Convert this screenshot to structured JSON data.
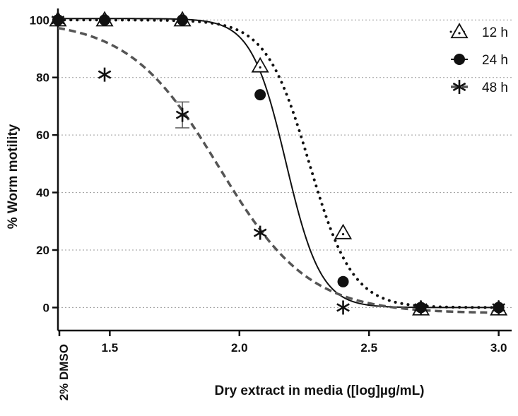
{
  "chart_data": {
    "type": "scatter",
    "title": "",
    "xlabel": "Dry extract in media ([log]µg/mL)",
    "ylabel": "% Worm motility",
    "xlim": [
      1.3,
      3.05
    ],
    "ylim": [
      -8,
      104
    ],
    "x_scale": "log10",
    "x_ticks": [
      1.5,
      2.0,
      2.5,
      3.0
    ],
    "x_tick_labels": [
      "1.5",
      "2.0",
      "2.5",
      "3.0"
    ],
    "x_control_label": "2% DMSO",
    "y_ticks": [
      0,
      20,
      40,
      60,
      80,
      100
    ],
    "y_tick_labels": [
      "0",
      "20",
      "40",
      "60",
      "80",
      "100"
    ],
    "grid": "horizontal dotted",
    "legend_position": "top-right",
    "series": [
      {
        "name": "12 h",
        "marker": "triangle-open",
        "line_style": "dotted",
        "color": "#111111",
        "points": [
          {
            "x": 1.3,
            "y": 100
          },
          {
            "x": 1.48,
            "y": 100
          },
          {
            "x": 1.78,
            "y": 100
          },
          {
            "x": 2.08,
            "y": 84
          },
          {
            "x": 2.4,
            "y": 26
          },
          {
            "x": 2.7,
            "y": -0.5
          },
          {
            "x": 3.0,
            "y": -0.5
          }
        ],
        "fit": {
          "top": 100,
          "bottom": 0,
          "log_ec50": 2.27,
          "hill": 5.2
        }
      },
      {
        "name": "24 h",
        "marker": "circle-filled",
        "line_style": "solid",
        "color": "#111111",
        "points": [
          {
            "x": 1.3,
            "y": 100
          },
          {
            "x": 1.48,
            "y": 100
          },
          {
            "x": 1.78,
            "y": 100
          },
          {
            "x": 2.08,
            "y": 74
          },
          {
            "x": 2.4,
            "y": 9
          },
          {
            "x": 2.7,
            "y": 0
          },
          {
            "x": 3.0,
            "y": 0
          }
        ],
        "fit": {
          "top": 100.5,
          "bottom": 0,
          "log_ec50": 2.18,
          "hill": 6.5
        }
      },
      {
        "name": "48 h",
        "marker": "asterisk",
        "line_style": "dashed",
        "color": "#555555",
        "points": [
          {
            "x": 1.3,
            "y": 100
          },
          {
            "x": 1.48,
            "y": 81
          },
          {
            "x": 1.78,
            "y": 67,
            "err": 4.5
          },
          {
            "x": 2.08,
            "y": 26
          },
          {
            "x": 2.4,
            "y": 0
          },
          {
            "x": 2.7,
            "y": 0
          },
          {
            "x": 3.0,
            "y": 0
          }
        ],
        "fit": {
          "top": 100,
          "bottom": -2,
          "log_ec50": 1.92,
          "hill": 2.5
        }
      }
    ]
  }
}
